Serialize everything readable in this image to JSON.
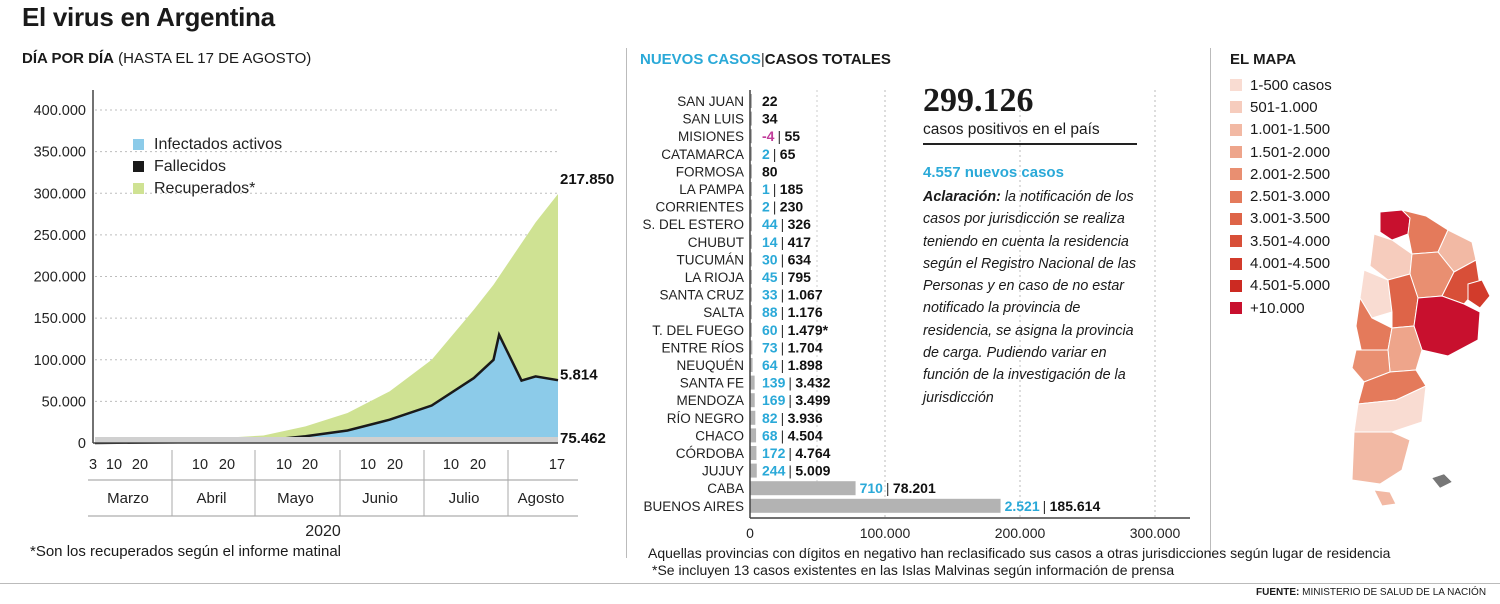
{
  "title": "El virus en Argentina",
  "left": {
    "title_bold": "DÍA POR DÍA",
    "title_light": " (HASTA EL 17 DE AGOSTO)",
    "footnote": "*Son los recuperados según el informe matinal"
  },
  "middle": {
    "title_new": "NUEVOS CASOS",
    "title_sep": "|",
    "title_total": "CASOS TOTALES",
    "big_number": "299.126",
    "big_sub": "casos positivos en el país",
    "new_cases": "4.557 nuevos casos",
    "note_bold": "Aclaración:",
    "note_text": " la notificación de los casos por jurisdicción se realiza teniendo en cuenta la residencia según el Registro Nacional de las Personas y en caso de no estar notificado la provincia de residencia, se asigna la provincia de carga. Pudiendo variar en función de la investigación de la jurisdicción",
    "footnote1": "Aquellas provincias con dígitos en negativo han reclasificado sus casos a otras jurisdicciones según lugar de residencia",
    "footnote2": "*Se incluyen 13 casos existentes en las Islas Malvinas según información de prensa"
  },
  "map": {
    "title": "EL MAPA",
    "legend": [
      {
        "label": "1-500 casos",
        "color": "#f9dcd2"
      },
      {
        "label": "501-1.000",
        "color": "#f6ccbd"
      },
      {
        "label": "1.001-1.500",
        "color": "#f2b9a4"
      },
      {
        "label": "1.501-2.000",
        "color": "#eea58b"
      },
      {
        "label": "2.001-2.500",
        "color": "#e98f71"
      },
      {
        "label": "2.501-3.000",
        "color": "#e47a5b"
      },
      {
        "label": "3.001-3.500",
        "color": "#de6448"
      },
      {
        "label": "3.501-4.000",
        "color": "#d84f38"
      },
      {
        "label": "4.001-4.500",
        "color": "#d23b2b"
      },
      {
        "label": "4.501-5.000",
        "color": "#cc2a22"
      },
      {
        "label": "+10.000",
        "color": "#c8102e"
      }
    ]
  },
  "source_label": "FUENTE:",
  "source_text": " MINISTERIO DE SALUD DE LA NACIÓN",
  "chart_data": [
    {
      "type": "area",
      "series": [
        {
          "name": "Infectados activos",
          "color": "#8ccbe9",
          "x": [
            3,
            18,
            33,
            48,
            63,
            78,
            93,
            108,
            123,
            138,
            145,
            147,
            155,
            160,
            168
          ],
          "values": [
            0,
            500,
            800,
            2000,
            3000,
            8000,
            15000,
            28000,
            45000,
            78000,
            100000,
            130000,
            75000,
            80000,
            75462
          ]
        },
        {
          "name": "Fallecidos",
          "color": "#1a1a1a",
          "x": [
            3,
            48,
            93,
            123,
            145,
            168
          ],
          "values": [
            0,
            300,
            1000,
            2500,
            4000,
            5814
          ]
        },
        {
          "name": "Recuperados*",
          "color": "#cfe293",
          "x": [
            3,
            18,
            33,
            48,
            63,
            78,
            93,
            108,
            123,
            138,
            145,
            155,
            160,
            168
          ],
          "values": [
            0,
            1200,
            4000,
            6000,
            9000,
            20000,
            36000,
            62000,
            100000,
            160000,
            190000,
            240000,
            265000,
            299126
          ]
        }
      ],
      "ylim": [
        0,
        400000
      ],
      "yticks": [
        "0",
        "50.000",
        "100.000",
        "150.000",
        "200.000",
        "250.000",
        "300.000",
        "350.000",
        "400.000"
      ],
      "xtick_labels": [
        "3",
        "10",
        "20",
        "10",
        "20",
        "10",
        "20",
        "10",
        "20",
        "10",
        "20",
        "17"
      ],
      "months": [
        "Marzo",
        "Abril",
        "Mayo",
        "Junio",
        "Julio",
        "Agosto"
      ],
      "year": "2020",
      "end_labels": [
        "217.850",
        "5.814",
        "75.462"
      ],
      "legend_position": "top-left"
    },
    {
      "type": "bar",
      "orientation": "horizontal",
      "categories": [
        "SAN JUAN",
        "SAN LUIS",
        "MISIONES",
        "CATAMARCA",
        "FORMOSA",
        "LA PAMPA",
        "CORRIENTES",
        "S. DEL ESTERO",
        "CHUBUT",
        "TUCUMÁN",
        "LA RIOJA",
        "SANTA CRUZ",
        "SALTA",
        "T. DEL FUEGO",
        "ENTRE RÍOS",
        "NEUQUÉN",
        "SANTA FE",
        "MENDOZA",
        "RÍO NEGRO",
        "CHACO",
        "CÓRDOBA",
        "JUJUY",
        "CABA",
        "BUENOS AIRES"
      ],
      "new_labels": [
        "",
        "",
        "-4",
        "2",
        "",
        "1",
        "2",
        "44",
        "14",
        "30",
        "45",
        "33",
        "88",
        "60",
        "73",
        "64",
        "139",
        "169",
        "82",
        "68",
        "172",
        "244",
        "710",
        "2.521"
      ],
      "new_values": [
        0,
        0,
        -4,
        2,
        0,
        1,
        2,
        44,
        14,
        30,
        45,
        33,
        88,
        60,
        73,
        64,
        139,
        169,
        82,
        68,
        172,
        244,
        710,
        2521
      ],
      "total_labels": [
        "22",
        "34",
        "55",
        "65",
        "80",
        "185",
        "230",
        "326",
        "417",
        "634",
        "795",
        "1.067",
        "1.176",
        "1.479*",
        "1.704",
        "1.898",
        "3.432",
        "3.499",
        "3.936",
        "4.504",
        "4.764",
        "5.009",
        "78.201",
        "185.614"
      ],
      "total_values": [
        22,
        34,
        55,
        65,
        80,
        185,
        230,
        326,
        417,
        634,
        795,
        1067,
        1176,
        1479,
        1704,
        1898,
        3432,
        3499,
        3936,
        4504,
        4764,
        5009,
        78201,
        185614
      ],
      "xlim": [
        0,
        300000
      ],
      "xticks": [
        "0",
        "100.000",
        "200.000",
        "300.000"
      ],
      "new_color": "#2aa9d8",
      "negative_color": "#c13d9a",
      "bar_color": "#b3b3b3"
    }
  ]
}
